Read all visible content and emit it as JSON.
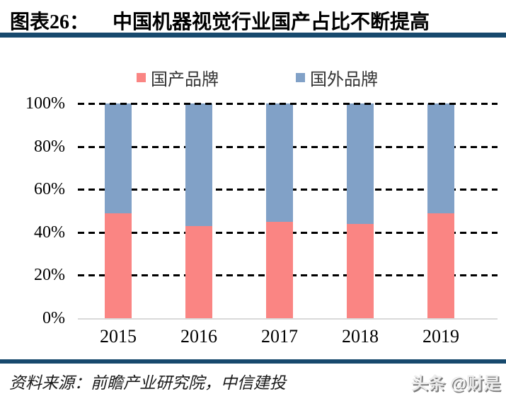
{
  "header": {
    "figure_label": "图表26：",
    "title": "中国机器视觉行业国产占比不断提高"
  },
  "chart_data": {
    "type": "bar",
    "stacked": true,
    "orientation": "vertical",
    "categories": [
      "2015",
      "2016",
      "2017",
      "2018",
      "2019"
    ],
    "series": [
      {
        "name": "国产品牌",
        "color": "#FA8583",
        "values": [
          49,
          43,
          45,
          44,
          49
        ]
      },
      {
        "name": "国外品牌",
        "color": "#81A1C7",
        "values": [
          51,
          57,
          55,
          56,
          51
        ]
      }
    ],
    "unit": "%",
    "ylim": [
      0,
      100
    ],
    "yticks": [
      "0%",
      "20%",
      "40%",
      "60%",
      "80%",
      "100%"
    ],
    "ytick_values": [
      0,
      20,
      40,
      60,
      80,
      100
    ],
    "grid": "horizontal-dashed",
    "legend_position": "top-center"
  },
  "footer": {
    "source": "资料来源：前瞻产业研究院，中信建投",
    "watermark": "头条 @财是"
  },
  "colors": {
    "accent_rule": "#17496D",
    "domestic_bar": "#FA8583",
    "foreign_bar": "#81A1C7",
    "gridline": "#000000",
    "zero_axis_line": "#D9D9D9",
    "title_text": "#000000"
  }
}
